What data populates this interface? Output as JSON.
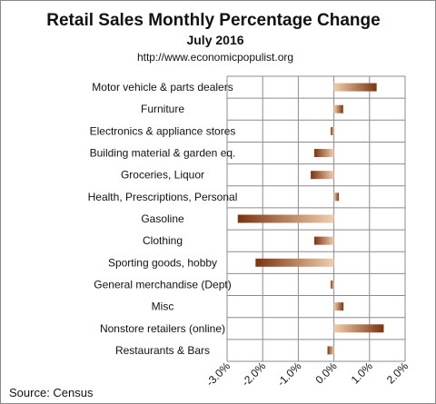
{
  "chart_data": {
    "type": "bar",
    "orientation": "horizontal",
    "title": "Retail Sales Monthly  Percentage Change",
    "subtitle": "July 2016",
    "url": "http://www.economicpopulist.org",
    "source": "Source:  Census",
    "categories": [
      "Motor vehicle & parts dealers",
      "Furniture",
      "Electronics & appliance stores",
      "Building material & garden eq.",
      "Groceries, Liquor",
      "Health, Prescriptions, Personal",
      "Gasoline",
      "Clothing",
      "Sporting goods, hobby",
      "General merchandise (Dept)",
      "Misc",
      "Nonstore retailers (online)",
      "Restaurants & Bars"
    ],
    "values": [
      1.2,
      0.26,
      -0.09,
      -0.55,
      -0.65,
      0.14,
      -2.7,
      -0.55,
      -2.2,
      -0.09,
      0.27,
      1.4,
      -0.18
    ],
    "xlim": [
      -3.0,
      2.0
    ],
    "xticks": [
      -3.0,
      -2.0,
      -1.0,
      0.0,
      1.0,
      2.0
    ],
    "xtick_labels": [
      "-3.0%",
      "-2.0%",
      "-1.0%",
      "0.0%",
      "1.0%",
      "2.0%"
    ],
    "grid": true,
    "colors": {
      "dark": "#7a3410",
      "light": "#f0cfae",
      "grid": "#8c8c8c"
    }
  }
}
